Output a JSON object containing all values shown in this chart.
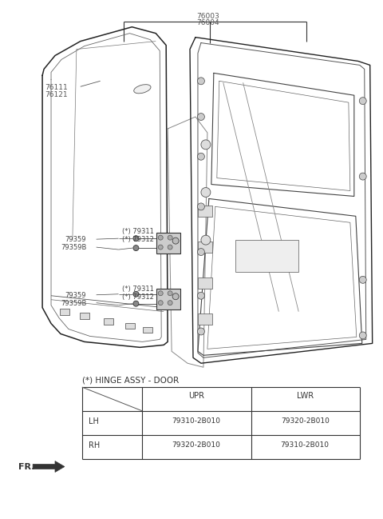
{
  "background_color": "#ffffff",
  "line_color": "#333333",
  "table_title": "(*) HINGE ASSY - DOOR",
  "table_headers": [
    "",
    "UPR",
    "LWR"
  ],
  "table_rows": [
    [
      "LH",
      "79310-2B010",
      "79320-2B010"
    ],
    [
      "RH",
      "79320-2B010",
      "79310-2B010"
    ]
  ],
  "label_76003": "76003",
  "label_76004": "76004",
  "label_76111": "76111",
  "label_76121": "76121",
  "label_79311": "(*) 79311",
  "label_79312": "(*) 79312",
  "label_79359": "79359",
  "label_79359B": "79359B"
}
